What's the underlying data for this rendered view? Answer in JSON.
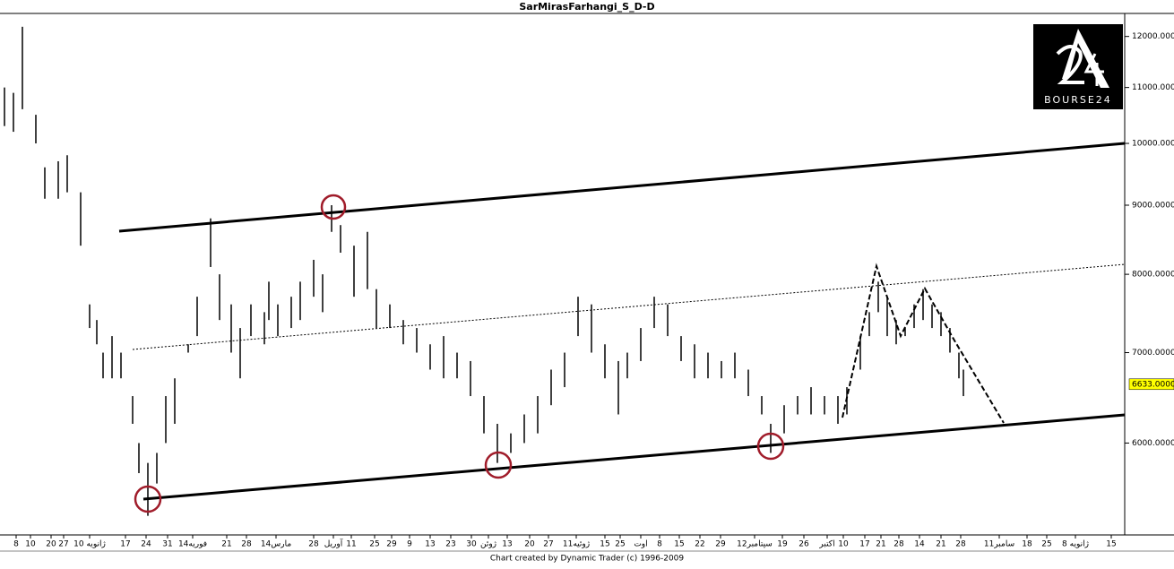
{
  "chart_data": {
    "type": "hilo",
    "title": "SarMirasFarhangi_S_D-D",
    "footer": "Chart created by Dynamic Trader  (c) 1996-2009",
    "logo": "BOURSE24",
    "log_scale": true,
    "grid": false,
    "color": "#000000",
    "xlim": [
      0,
      251
    ],
    "xticks": [
      {
        "value": 3.6,
        "label": "8"
      },
      {
        "value": 6.8,
        "label": "10"
      },
      {
        "value": 11.4,
        "label": "20"
      },
      {
        "value": 14.2,
        "label": "27"
      },
      {
        "value": 20,
        "label": "10 ژانویه"
      },
      {
        "value": 28,
        "label": "17"
      },
      {
        "value": 32.6,
        "label": "24"
      },
      {
        "value": 37.4,
        "label": "31"
      },
      {
        "value": 43,
        "label": "فوریه14"
      },
      {
        "value": 50.6,
        "label": "21"
      },
      {
        "value": 55,
        "label": "28"
      },
      {
        "value": 61.6,
        "label": "مارس14"
      },
      {
        "value": 70,
        "label": "28"
      },
      {
        "value": 74.4,
        "label": "آوریل"
      },
      {
        "value": 78.4,
        "label": "11"
      },
      {
        "value": 83.6,
        "label": "25"
      },
      {
        "value": 87.4,
        "label": "29"
      },
      {
        "value": 91.4,
        "label": "9"
      },
      {
        "value": 96,
        "label": "13"
      },
      {
        "value": 100.6,
        "label": "23"
      },
      {
        "value": 105.2,
        "label": "30"
      },
      {
        "value": 109,
        "label": "ژوئن"
      },
      {
        "value": 113.2,
        "label": "13"
      },
      {
        "value": 118.2,
        "label": "20"
      },
      {
        "value": 122.4,
        "label": "27"
      },
      {
        "value": 128.6,
        "label": "ژوئیه11"
      },
      {
        "value": 135,
        "label": "15"
      },
      {
        "value": 138.4,
        "label": "25"
      },
      {
        "value": 143,
        "label": "اوت"
      },
      {
        "value": 147.2,
        "label": "8"
      },
      {
        "value": 151.6,
        "label": "15"
      },
      {
        "value": 156.2,
        "label": "22"
      },
      {
        "value": 160.8,
        "label": "29"
      },
      {
        "value": 168.4,
        "label": "سپتامبر12"
      },
      {
        "value": 174.6,
        "label": "19"
      },
      {
        "value": 179.4,
        "label": "26"
      },
      {
        "value": 184.6,
        "label": "اکتبر"
      },
      {
        "value": 188.2,
        "label": "10"
      },
      {
        "value": 193,
        "label": "17"
      },
      {
        "value": 196.6,
        "label": "21"
      },
      {
        "value": 200.6,
        "label": "28"
      },
      {
        "value": 205.2,
        "label": "14"
      },
      {
        "value": 210,
        "label": "21"
      },
      {
        "value": 214.4,
        "label": "28"
      },
      {
        "value": 223,
        "label": "سامبر11"
      },
      {
        "value": 229.2,
        "label": "18"
      },
      {
        "value": 233.6,
        "label": "25"
      },
      {
        "value": 240,
        "label": "ژانویه 8"
      },
      {
        "value": 248,
        "label": "15"
      }
    ],
    "ylim": [
      5130,
      12480
    ],
    "yticks": [
      {
        "value": 12000,
        "label": "12000.0000"
      },
      {
        "value": 11000,
        "label": "11000.0000"
      },
      {
        "value": 10000,
        "label": "10000.0000"
      },
      {
        "value": 9000,
        "label": "9000.0000"
      },
      {
        "value": 8000,
        "label": "8000.0000"
      },
      {
        "value": 7000,
        "label": "7000.0000"
      },
      {
        "value": 6000,
        "label": "6000.0000"
      }
    ],
    "last_price": {
      "value": 6633,
      "label": "6633.0000"
    },
    "x": [
      1,
      3,
      5,
      8,
      10,
      13,
      15,
      18,
      20,
      21.6,
      23,
      25,
      27,
      29.6,
      31,
      33,
      35,
      37,
      39,
      42,
      44,
      47,
      49,
      51.6,
      53.6,
      56,
      59,
      60,
      62,
      65,
      67,
      70,
      72,
      74,
      76,
      79,
      82,
      84,
      87,
      90,
      93,
      96,
      99,
      102,
      105,
      108,
      111,
      114,
      117,
      120,
      123,
      126,
      129,
      132,
      135,
      138,
      140,
      143,
      146,
      149,
      152,
      155,
      158,
      161,
      164,
      167,
      170,
      172,
      175,
      178,
      181,
      184,
      187,
      189,
      192,
      194,
      196,
      198,
      200,
      202,
      204,
      206,
      208,
      210,
      212,
      214,
      215
    ],
    "high": [
      11000,
      10900,
      12200,
      10500,
      9600,
      9700,
      9800,
      9200,
      7600,
      7400,
      7000,
      7200,
      7000,
      6500,
      6000,
      5800,
      5900,
      6500,
      6700,
      7100,
      7700,
      8800,
      8000,
      7600,
      7300,
      7600,
      7500,
      7900,
      7600,
      7700,
      7900,
      8200,
      8000,
      9000,
      8700,
      8400,
      8600,
      7800,
      7600,
      7400,
      7300,
      7100,
      7200,
      7000,
      6900,
      6500,
      6200,
      6100,
      6300,
      6500,
      6800,
      7000,
      7700,
      7600,
      7100,
      6900,
      7000,
      7300,
      7700,
      7600,
      7200,
      7100,
      7000,
      6900,
      7000,
      6800,
      6500,
      6200,
      6400,
      6500,
      6600,
      6500,
      6500,
      6600,
      7200,
      7500,
      7900,
      7700,
      7400,
      7300,
      7600,
      7800,
      7600,
      7500,
      7300,
      7000,
      6800
    ],
    "low": [
      10300,
      10200,
      10600,
      10000,
      9100,
      9100,
      9200,
      8400,
      7300,
      7100,
      6700,
      6700,
      6700,
      6200,
      5700,
      5300,
      5600,
      6000,
      6200,
      7000,
      7200,
      8100,
      7400,
      7000,
      6700,
      7200,
      7100,
      7400,
      7200,
      7300,
      7400,
      7700,
      7500,
      8600,
      8300,
      7700,
      7800,
      7300,
      7300,
      7100,
      7000,
      6800,
      6700,
      6700,
      6500,
      6100,
      5800,
      5900,
      6000,
      6100,
      6400,
      6600,
      7200,
      7000,
      6700,
      6300,
      6700,
      6900,
      7300,
      7200,
      6900,
      6700,
      6700,
      6700,
      6700,
      6500,
      6300,
      5900,
      6100,
      6300,
      6300,
      6300,
      6200,
      6300,
      6800,
      7200,
      7500,
      7200,
      7100,
      7200,
      7300,
      7400,
      7300,
      7200,
      7000,
      6700,
      6500
    ]
  }
}
